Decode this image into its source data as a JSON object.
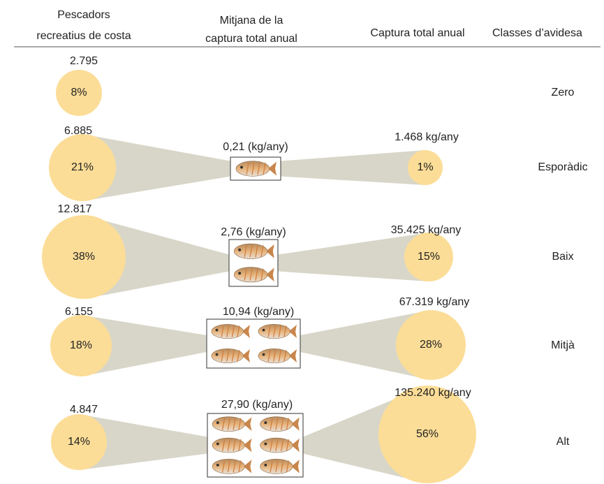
{
  "header": {
    "columns": [
      {
        "lines": [
          "Pescadors",
          "recreatius de costa"
        ]
      },
      {
        "lines": [
          "Mitjana de la",
          "captura total anual"
        ]
      },
      {
        "lines": [
          "Captura total anual"
        ]
      },
      {
        "lines": [
          "Classes d’avidesa"
        ]
      }
    ]
  },
  "rows": [
    {
      "class": "Zero",
      "anglers": "2.795",
      "anglers_share": "8%"
    },
    {
      "class": "Esporàdic",
      "anglers": "6.885",
      "anglers_share": "21%",
      "mean_catch": "0,21 (kg/any)",
      "total_catch": "1.468 kg/any",
      "catch_share": "1%"
    },
    {
      "class": "Baix",
      "anglers": "12.817",
      "anglers_share": "38%",
      "mean_catch": "2,76 (kg/any)",
      "total_catch": "35.425 kg/any",
      "catch_share": "15%"
    },
    {
      "class": "Mitjà",
      "anglers": "6.155",
      "anglers_share": "18%",
      "mean_catch": "10,94 (kg/any)",
      "total_catch": "67.319 kg/any",
      "catch_share": "28%"
    },
    {
      "class": "Alt",
      "anglers": "4.847",
      "anglers_share": "14%",
      "mean_catch": "27,90 (kg/any)",
      "total_catch": "135.240 kg/any",
      "catch_share": "56%"
    }
  ]
}
